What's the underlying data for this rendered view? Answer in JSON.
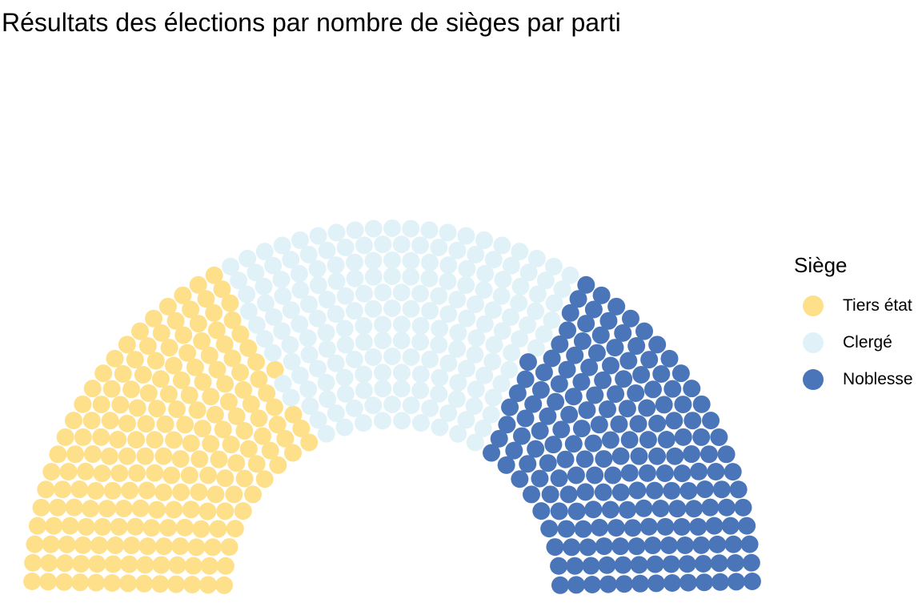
{
  "chart_data": {
    "type": "parliament",
    "title": "Résultats des élections par nombre de sièges par parti",
    "legend_title": "Siège",
    "legend_position": "right",
    "total_seats": 578,
    "series": [
      {
        "name": "Tiers état",
        "seats": 199,
        "color": "#FEDF8A"
      },
      {
        "name": "Clergé",
        "seats": 190,
        "color": "#E0F2F8"
      },
      {
        "name": "Noblesse",
        "seats": 189,
        "color": "#4A75B8"
      }
    ]
  }
}
